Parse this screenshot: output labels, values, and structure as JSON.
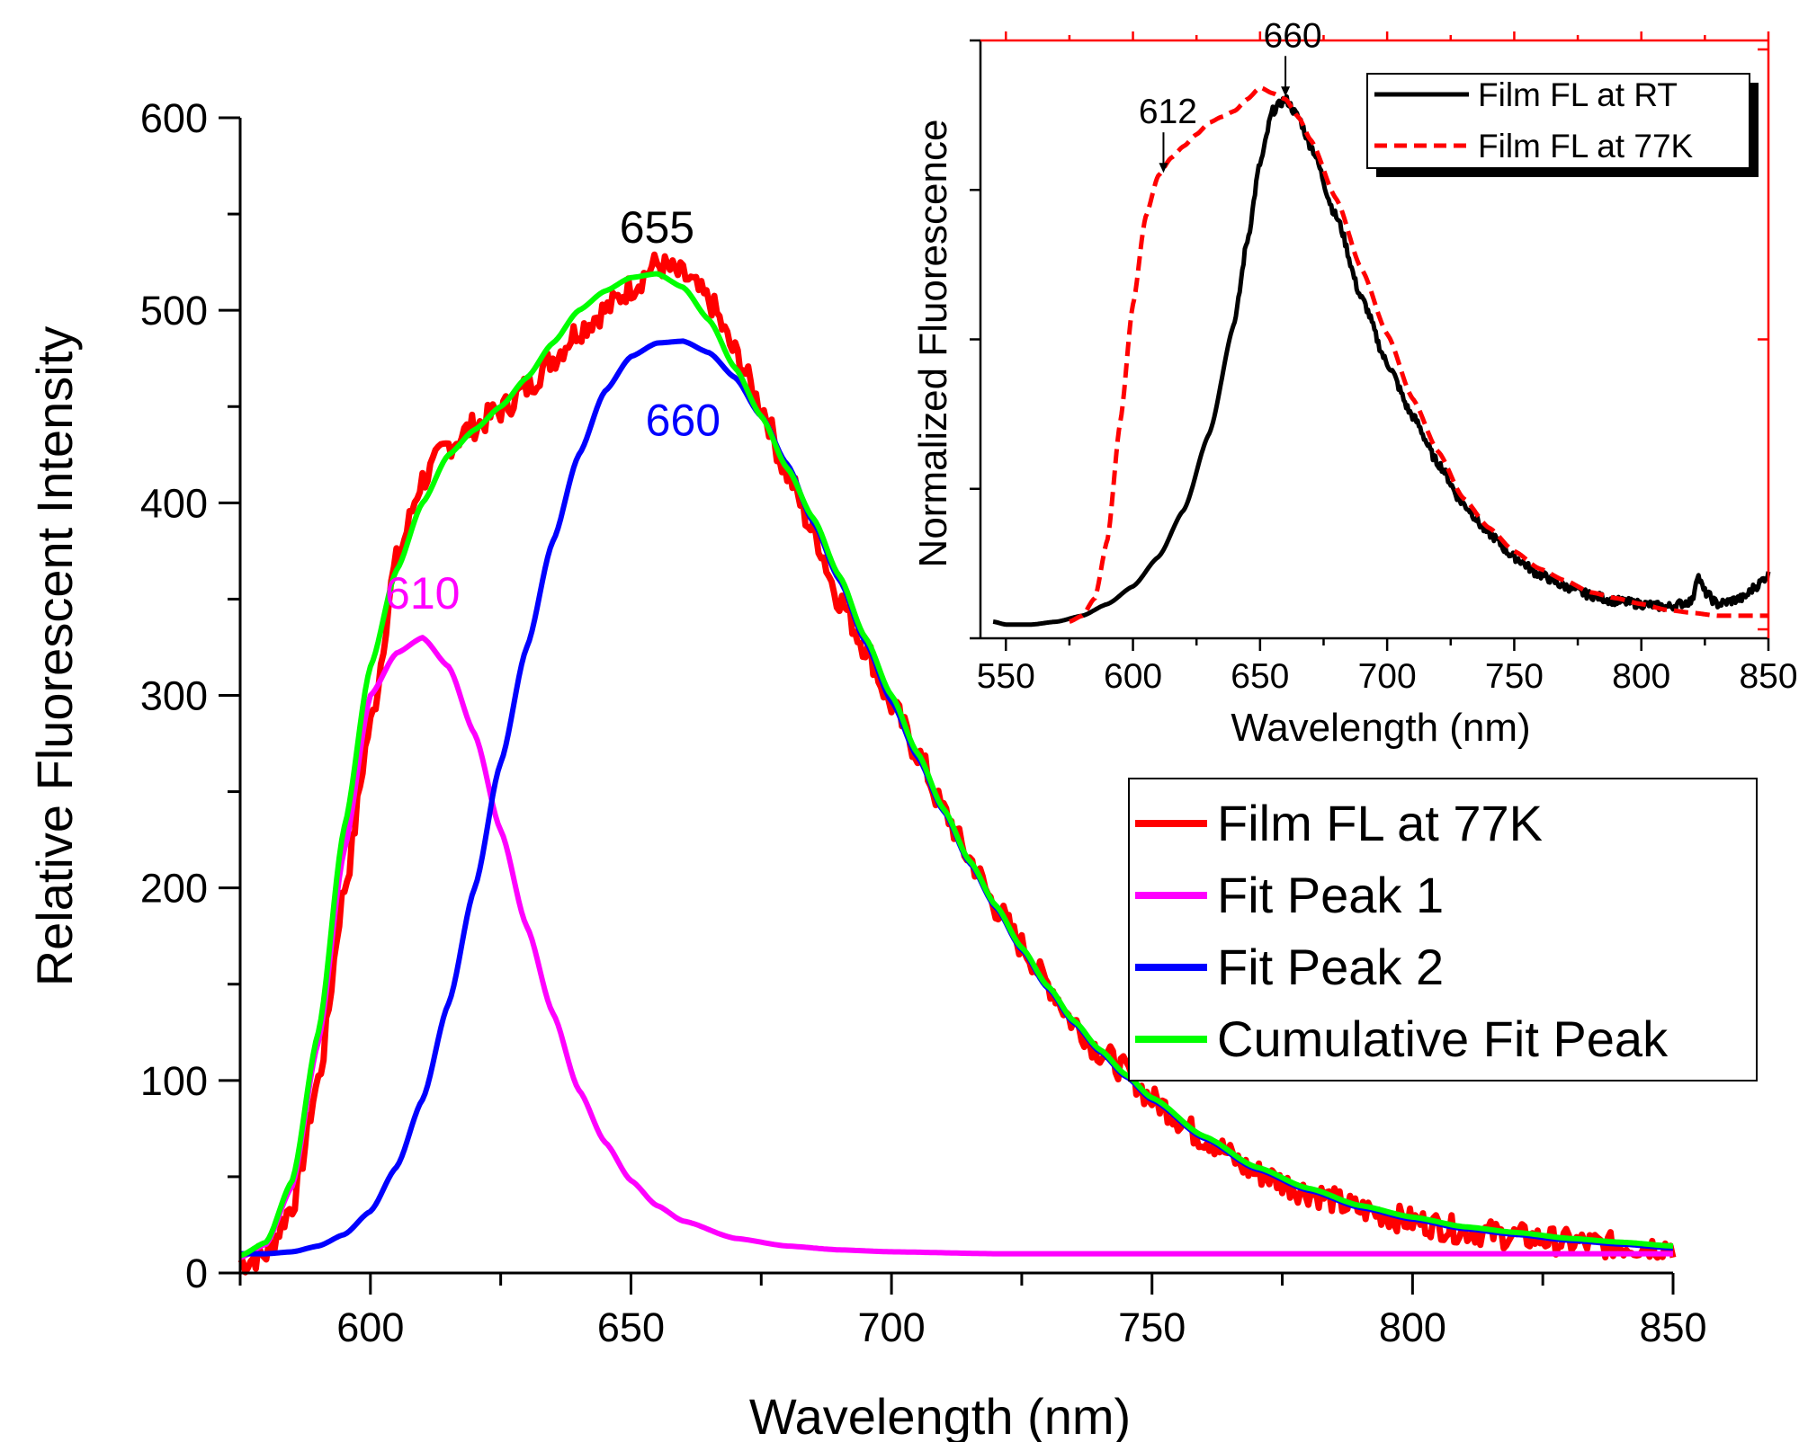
{
  "chart_data": [
    {
      "type": "line",
      "title": "",
      "xlabel": "Wavelength (nm)",
      "ylabel": "Relative Fluorescent Intensity",
      "xlim": [
        575,
        850
      ],
      "ylim": [
        0,
        600
      ],
      "xticks": [
        600,
        650,
        700,
        750,
        800,
        850
      ],
      "yticks": [
        0,
        100,
        200,
        300,
        400,
        500,
        600
      ],
      "x_minor_step": 25,
      "y_minor_step": 50,
      "grid": false,
      "legend": "right",
      "series": [
        {
          "name": "Film FL at 77K",
          "color": "#ff0000",
          "style": "solid-noisy",
          "x": [
            575,
            580,
            585,
            590,
            595,
            600,
            605,
            610,
            615,
            620,
            625,
            630,
            635,
            640,
            645,
            650,
            655,
            660,
            665,
            670,
            675,
            680,
            685,
            690,
            695,
            700,
            705,
            710,
            715,
            720,
            725,
            730,
            735,
            740,
            745,
            750,
            760,
            770,
            780,
            790,
            800,
            810,
            820,
            830,
            840,
            850
          ],
          "y": [
            5,
            10,
            35,
            100,
            200,
            285,
            370,
            412,
            430,
            440,
            448,
            460,
            475,
            490,
            500,
            512,
            524,
            518,
            505,
            478,
            450,
            415,
            385,
            350,
            325,
            295,
            270,
            240,
            215,
            190,
            170,
            150,
            130,
            115,
            105,
            90,
            70,
            52,
            42,
            33,
            27,
            22,
            19,
            16,
            14,
            14
          ]
        },
        {
          "name": "Fit Peak 1",
          "color": "#ff00ff",
          "style": "solid",
          "x": [
            575,
            580,
            585,
            590,
            595,
            600,
            605,
            610,
            615,
            620,
            625,
            630,
            635,
            640,
            645,
            650,
            655,
            660,
            670,
            680,
            690,
            700,
            720,
            750,
            800,
            850
          ],
          "y": [
            8,
            15,
            45,
            120,
            220,
            300,
            322,
            330,
            315,
            280,
            230,
            180,
            135,
            95,
            68,
            48,
            35,
            27,
            18,
            14,
            12,
            11,
            10,
            10,
            10,
            10
          ]
        },
        {
          "name": "Fit Peak 2",
          "color": "#0000ff",
          "style": "solid",
          "x": [
            575,
            580,
            585,
            590,
            595,
            600,
            605,
            610,
            615,
            620,
            625,
            630,
            635,
            640,
            645,
            650,
            655,
            660,
            665,
            670,
            675,
            680,
            685,
            690,
            695,
            700,
            705,
            710,
            715,
            720,
            725,
            730,
            735,
            740,
            745,
            750,
            760,
            770,
            780,
            790,
            800,
            810,
            820,
            830,
            840,
            850
          ],
          "y": [
            10,
            10,
            11,
            14,
            20,
            32,
            55,
            90,
            140,
            200,
            265,
            325,
            380,
            425,
            458,
            476,
            483,
            484,
            478,
            465,
            445,
            420,
            390,
            360,
            328,
            297,
            268,
            240,
            213,
            190,
            168,
            148,
            130,
            115,
            102,
            90,
            70,
            54,
            43,
            34,
            28,
            23,
            20,
            17,
            15,
            13
          ]
        },
        {
          "name": "Cumulative Fit Peak",
          "color": "#00ff00",
          "style": "solid",
          "x": [
            575,
            580,
            585,
            590,
            595,
            600,
            605,
            610,
            615,
            620,
            625,
            630,
            635,
            640,
            645,
            650,
            655,
            660,
            665,
            670,
            675,
            680,
            685,
            690,
            695,
            700,
            705,
            710,
            715,
            720,
            725,
            730,
            735,
            740,
            745,
            750,
            760,
            770,
            780,
            790,
            800,
            810,
            820,
            830,
            840,
            850
          ],
          "y": [
            9,
            16,
            48,
            125,
            232,
            315,
            365,
            400,
            425,
            438,
            450,
            465,
            483,
            500,
            510,
            517,
            519,
            512,
            495,
            470,
            445,
            418,
            392,
            362,
            330,
            300,
            270,
            241,
            214,
            191,
            169,
            149,
            131,
            116,
            103,
            91,
            71,
            55,
            44,
            35,
            29,
            24,
            21,
            18,
            16,
            14
          ]
        }
      ],
      "annotations": [
        {
          "text": "655",
          "x": 655,
          "y": 535,
          "color": "#000000"
        },
        {
          "text": "660",
          "x": 660,
          "y": 435,
          "color": "#0000ff"
        },
        {
          "text": "610",
          "x": 610,
          "y": 345,
          "color": "#ff00ff"
        }
      ]
    },
    {
      "type": "line",
      "title": "",
      "xlabel": "Wavelength (nm)",
      "ylabel": "Normalized Fluorescence",
      "xlim": [
        540,
        850
      ],
      "ylim": [
        0,
        1
      ],
      "xticks": [
        550,
        600,
        650,
        700,
        750,
        800,
        850
      ],
      "xtick_labels": [
        "550",
        "600",
        "650",
        "700",
        "750",
        "800",
        "850"
      ],
      "y_tick_labels_shown": false,
      "grid": false,
      "legend": "top-right",
      "series": [
        {
          "name": "Film FL at RT",
          "color": "#000000",
          "style": "solid",
          "x": [
            545,
            550,
            560,
            570,
            580,
            590,
            600,
            610,
            620,
            630,
            640,
            645,
            650,
            655,
            660,
            665,
            670,
            680,
            690,
            700,
            710,
            720,
            730,
            740,
            750,
            760,
            770,
            780,
            790,
            800,
            810,
            820,
            822,
            825,
            830,
            840,
            845,
            850
          ],
          "y": [
            0.01,
            0.005,
            0.005,
            0.01,
            0.02,
            0.04,
            0.07,
            0.12,
            0.2,
            0.33,
            0.52,
            0.66,
            0.79,
            0.88,
            0.9,
            0.87,
            0.82,
            0.7,
            0.56,
            0.45,
            0.36,
            0.28,
            0.21,
            0.16,
            0.12,
            0.09,
            0.07,
            0.055,
            0.045,
            0.04,
            0.035,
            0.045,
            0.09,
            0.06,
            0.04,
            0.05,
            0.07,
            0.09
          ]
        },
        {
          "name": "Film FL at 77K",
          "color": "#ff0000",
          "style": "dashed",
          "x": [
            575,
            580,
            585,
            590,
            595,
            600,
            605,
            610,
            615,
            620,
            625,
            630,
            635,
            640,
            645,
            650,
            655,
            660,
            665,
            670,
            680,
            690,
            700,
            710,
            720,
            730,
            740,
            750,
            760,
            770,
            780,
            790,
            800,
            810,
            820,
            830,
            840,
            850
          ],
          "y": [
            0.01,
            0.02,
            0.05,
            0.15,
            0.35,
            0.55,
            0.7,
            0.77,
            0.8,
            0.82,
            0.84,
            0.86,
            0.87,
            0.88,
            0.9,
            0.92,
            0.91,
            0.9,
            0.87,
            0.83,
            0.73,
            0.61,
            0.5,
            0.39,
            0.3,
            0.22,
            0.17,
            0.13,
            0.1,
            0.08,
            0.06,
            0.05,
            0.04,
            0.03,
            0.025,
            0.02,
            0.02,
            0.02
          ]
        }
      ],
      "annotations": [
        {
          "text": "660",
          "x": 660,
          "y": 0.9,
          "arrow": true
        },
        {
          "text": "612",
          "x": 612,
          "y": 0.77,
          "arrow": true
        }
      ]
    }
  ]
}
